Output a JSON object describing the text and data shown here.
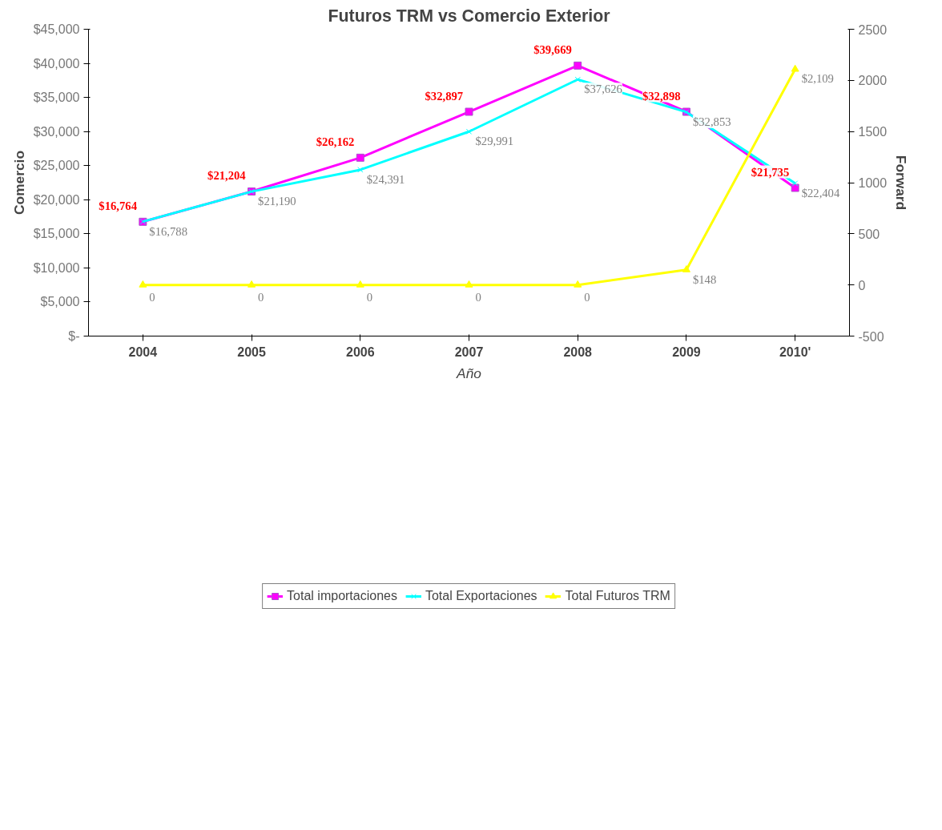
{
  "chart_data": {
    "type": "line",
    "title": "Futuros TRM vs Comercio Exterior",
    "xlabel": "Año",
    "ylabel": "Comercio",
    "y2label": "Forward",
    "categories": [
      "2004",
      "2005",
      "2006",
      "2007",
      "2008",
      "2009",
      "2010'"
    ],
    "series": [
      {
        "name": "Total importaciones",
        "color": "#ff00ff",
        "marker": "square",
        "values": [
          16764,
          21204,
          26162,
          32897,
          39669,
          32898,
          21735
        ],
        "value_labels": [
          "$16,764",
          "$21,204",
          "$26,162",
          "$32,897",
          "$39,669",
          "$32,898",
          "$21,735"
        ]
      },
      {
        "name": "Total Exportaciones",
        "color": "#00ffff",
        "marker": "cross",
        "values": [
          16788,
          21190,
          24391,
          29991,
          37626,
          32853,
          22404
        ],
        "value_labels": [
          "$16,788",
          "$21,190",
          "$24,391",
          "$29,991",
          "$37,626",
          "$32,853",
          "$22,404"
        ]
      },
      {
        "name": "Total Futuros TRM",
        "color": "#ffff00",
        "marker": "triangle",
        "axis": "y2",
        "values": [
          0,
          0,
          0,
          0,
          0,
          148,
          2109
        ],
        "value_labels": [
          "0",
          "0",
          "0",
          "0",
          "0",
          "$148",
          "$2,109"
        ]
      }
    ],
    "ylim": [
      0,
      45000
    ],
    "yticks": [
      {
        "value": 0,
        "label": "$-"
      },
      {
        "value": 5000,
        "label": "$5,000"
      },
      {
        "value": 10000,
        "label": "$10,000"
      },
      {
        "value": 15000,
        "label": "$15,000"
      },
      {
        "value": 20000,
        "label": "$20,000"
      },
      {
        "value": 25000,
        "label": "$25,000"
      },
      {
        "value": 30000,
        "label": "$30,000"
      },
      {
        "value": 35000,
        "label": "$35,000"
      },
      {
        "value": 40000,
        "label": "$40,000"
      },
      {
        "value": 45000,
        "label": "$45,000"
      }
    ],
    "y2lim": [
      -500,
      2500
    ],
    "y2ticks": [
      -500,
      0,
      500,
      1000,
      1500,
      2000,
      2500
    ],
    "grid": false,
    "legend": "bottom",
    "line_style": "solid"
  }
}
